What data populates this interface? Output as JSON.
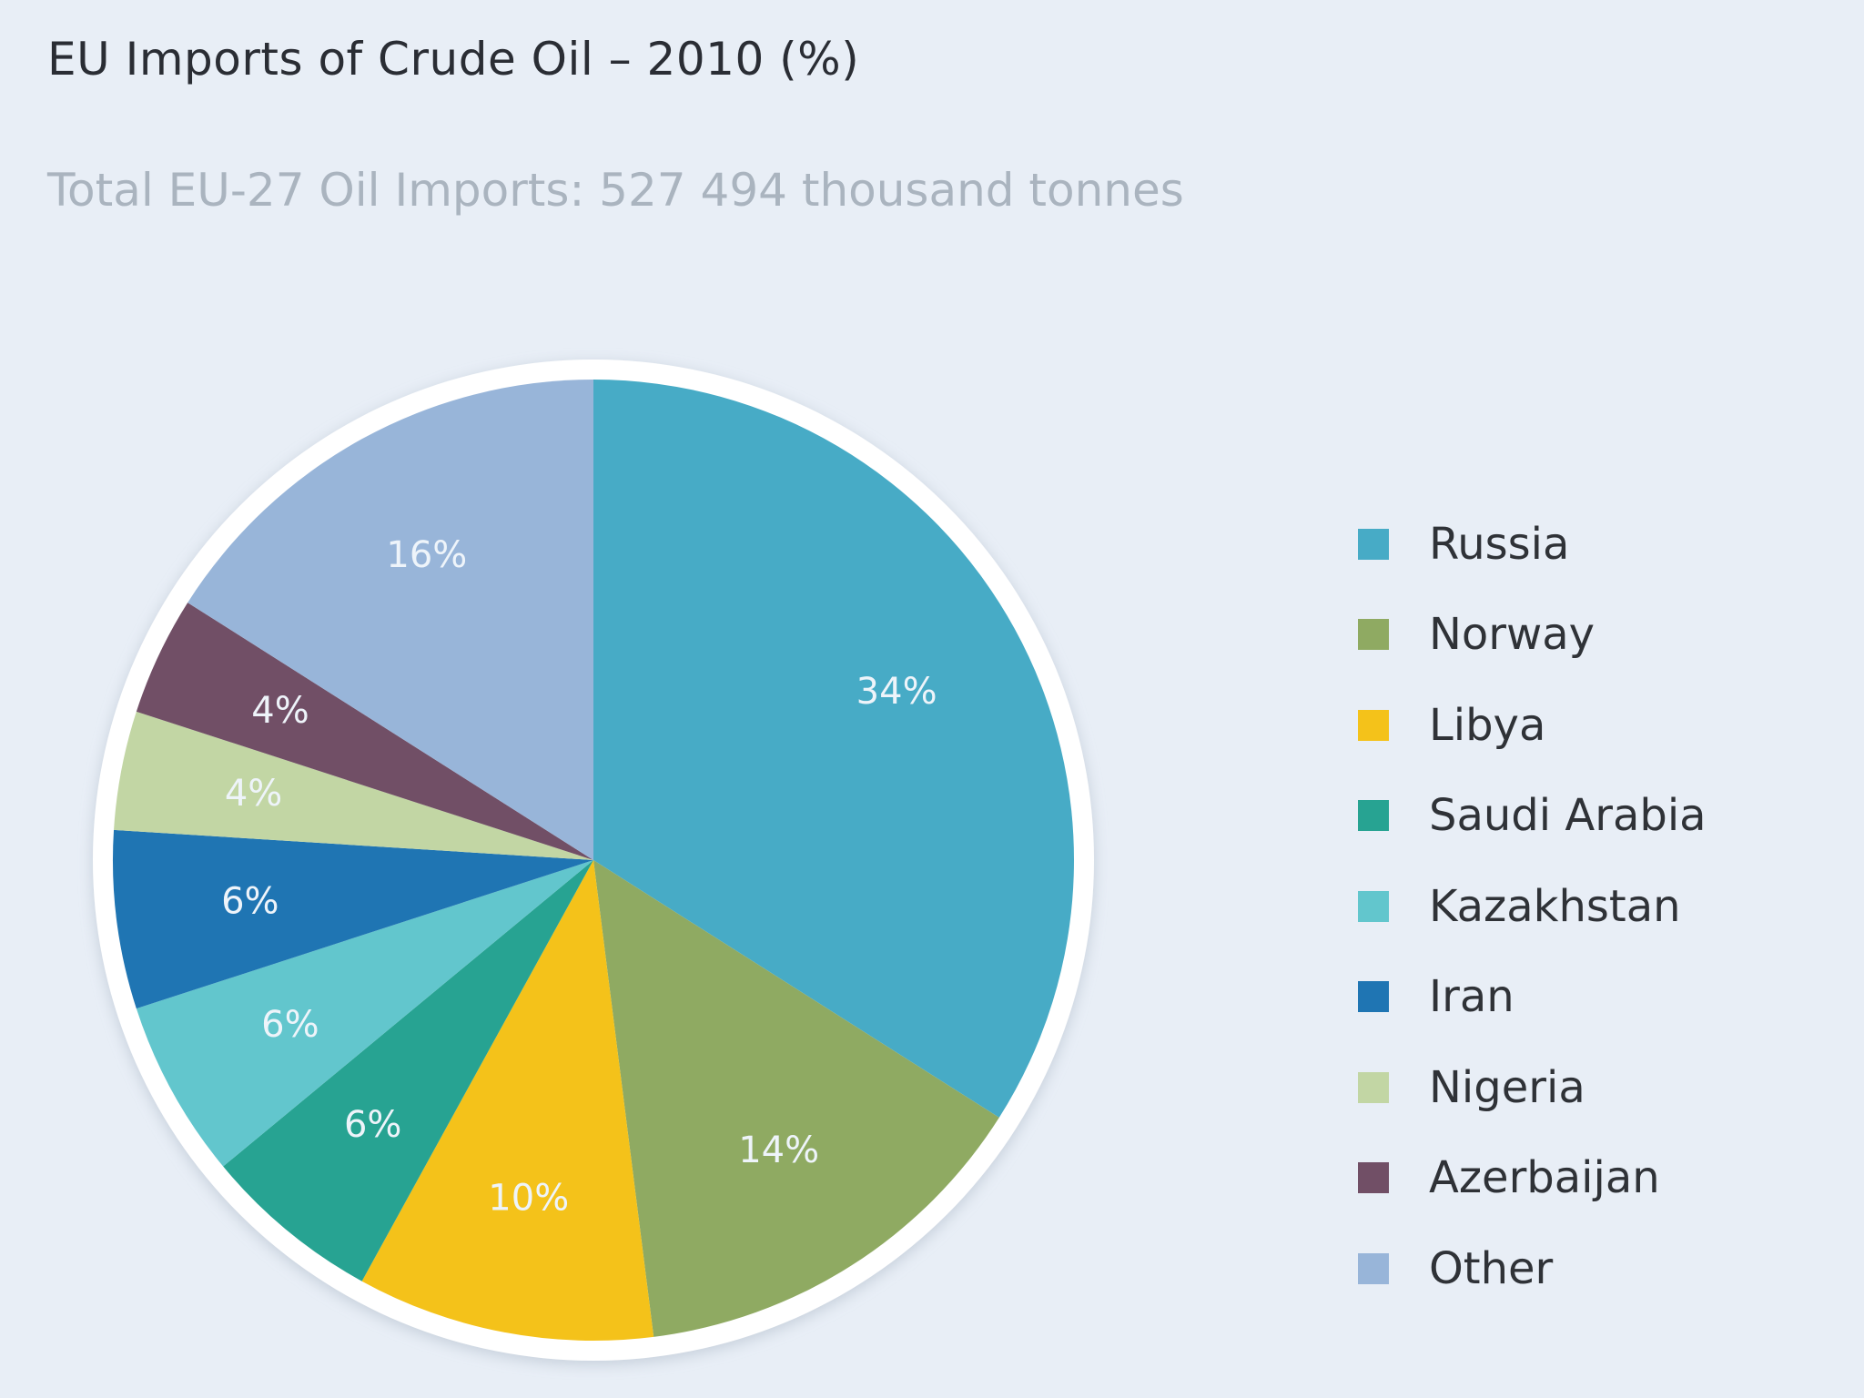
{
  "chart_data": {
    "type": "pie",
    "title": "EU Imports of Crude Oil – 2010 (%)",
    "subtitle": "Total EU-27 Oil Imports: 527 494 thousand tonnes",
    "legend_position": "right",
    "slices": [
      {
        "label": "Russia",
        "value": 34,
        "display": "34%",
        "color": "#47abc6"
      },
      {
        "label": "Norway",
        "value": 14,
        "display": "14%",
        "color": "#8faa62"
      },
      {
        "label": "Libya",
        "value": 10,
        "display": "10%",
        "color": "#f4c21a"
      },
      {
        "label": "Saudi Arabia",
        "value": 6,
        "display": "6%",
        "color": "#27a392"
      },
      {
        "label": "Kazakhstan",
        "value": 6,
        "display": "6%",
        "color": "#62c6cd"
      },
      {
        "label": "Iran",
        "value": 6,
        "display": "6%",
        "color": "#1f75b3"
      },
      {
        "label": "Nigeria",
        "value": 4,
        "display": "4%",
        "color": "#c2d6a4"
      },
      {
        "label": "Azerbaijan",
        "value": 4,
        "display": "4%",
        "color": "#714f66"
      },
      {
        "label": "Other",
        "value": 16,
        "display": "16%",
        "color": "#98b5d9"
      }
    ]
  }
}
